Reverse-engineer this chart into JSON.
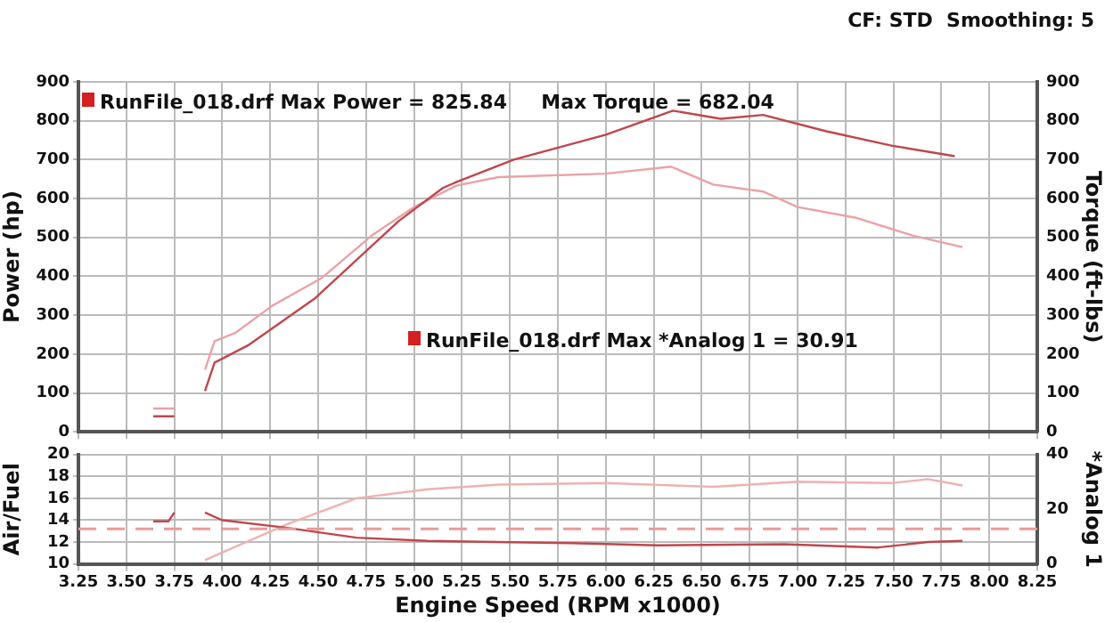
{
  "chart_data": [
    {
      "type": "line",
      "ylabel": "Power (hp)",
      "y2label": "Torque (ft-lbs)",
      "xlim": [
        3.25,
        8.25
      ],
      "xticks": [
        3.25,
        3.5,
        3.75,
        4,
        4.25,
        4.5,
        4.75,
        5,
        5.25,
        5.5,
        5.75,
        6,
        6.25,
        6.5,
        6.75,
        7,
        7.25,
        7.5,
        7.75,
        8,
        8.25
      ],
      "ylim": [
        0,
        900
      ],
      "yticks": [
        0,
        100,
        200,
        300,
        400,
        500,
        600,
        700,
        800,
        900
      ],
      "y2lim": [
        0,
        900
      ],
      "y2ticks": [
        0,
        100,
        200,
        300,
        400,
        500,
        600,
        700,
        800,
        900
      ],
      "grid": true,
      "tick_labels": "y",
      "annotations": [
        "CF: STD  Smoothing: 5",
        "RunFile_018.drf Max Power = 825.84     Max Torque = 682.04",
        "RunFile_018.drf Max *Analog 1 = 30.91"
      ],
      "series": [
        {
          "color": "#c0464c",
          "x": [
            3.64,
            3.75,
            3.8,
            3.91,
            3.96,
            4.14,
            4.48,
            4.7,
            4.92,
            5.15,
            5.22,
            5.52,
            6.0,
            6.35,
            6.6,
            6.82,
            7.15,
            7.49,
            7.82
          ],
          "values": [
            40,
            40,
            null,
            105,
            178,
            224,
            342,
            442,
            542,
            627,
            642,
            700,
            764,
            826,
            805,
            815,
            773,
            736,
            709
          ]
        },
        {
          "color": "#eaa2a6",
          "axis": "y2",
          "x": [
            3.64,
            3.75,
            3.8,
            3.91,
            3.96,
            4.07,
            4.26,
            4.52,
            4.78,
            5.0,
            5.22,
            5.44,
            6.0,
            6.34,
            6.56,
            6.82,
            7.0,
            7.3,
            7.6,
            7.86
          ],
          "values": [
            60,
            60,
            null,
            160,
            233,
            255,
            324,
            396,
            505,
            578,
            633,
            655,
            664,
            682,
            636,
            618,
            578,
            551,
            505,
            475
          ]
        }
      ]
    },
    {
      "type": "line",
      "xlabel": "Engine Speed (RPM x1000)",
      "ylabel": "Air/Fuel",
      "y2label": "*Analog 1",
      "xlim": [
        3.25,
        8.25
      ],
      "xticks": [
        3.25,
        {
          "value": 3.5,
          "label": "3.50"
        },
        3.75,
        {
          "value": 4,
          "label": "4.00"
        },
        4.25,
        {
          "value": 4.5,
          "label": "4.50"
        },
        4.75,
        {
          "value": 5,
          "label": "5.00"
        },
        5.25,
        {
          "value": 5.5,
          "label": "5.50"
        },
        5.75,
        {
          "value": 6,
          "label": "6.00"
        },
        6.25,
        {
          "value": 6.5,
          "label": "6.50"
        },
        6.75,
        {
          "value": 7,
          "label": "7.00"
        },
        7.25,
        {
          "value": 7.5,
          "label": "7.50"
        },
        7.75,
        {
          "value": 8,
          "label": "8.00"
        },
        8.25
      ],
      "ylim": [
        10,
        20
      ],
      "yticks": [
        10,
        12,
        14,
        16,
        18,
        20
      ],
      "y2lim": [
        0,
        40
      ],
      "y2ticks": [
        0,
        20,
        40
      ],
      "grid": true,
      "ref_lines": [
        {
          "axis": "y",
          "value": 13.2,
          "color": "#eb9a9a",
          "line_style": "dashed"
        }
      ],
      "series": [
        {
          "color": "#c0464c",
          "x": [
            3.64,
            3.72,
            3.75,
            3.8,
            3.91,
            4.0,
            4.34,
            4.7,
            5.07,
            5.82,
            6.27,
            6.93,
            7.42,
            7.68,
            7.86
          ],
          "values": [
            13.9,
            13.9,
            14.7,
            null,
            14.7,
            14.0,
            13.3,
            12.4,
            12.1,
            11.9,
            11.7,
            11.8,
            11.5,
            12.0,
            12.1
          ]
        },
        {
          "color": "#f0b0b0",
          "axis": "y2",
          "x": [
            3.91,
            4.34,
            4.7,
            5.07,
            5.44,
            6.0,
            6.56,
            7.0,
            7.49,
            7.68,
            7.86
          ],
          "values": [
            1.4,
            14.6,
            24,
            27.3,
            29,
            29.6,
            28.2,
            30.1,
            29.6,
            31,
            28.7
          ]
        }
      ]
    }
  ]
}
